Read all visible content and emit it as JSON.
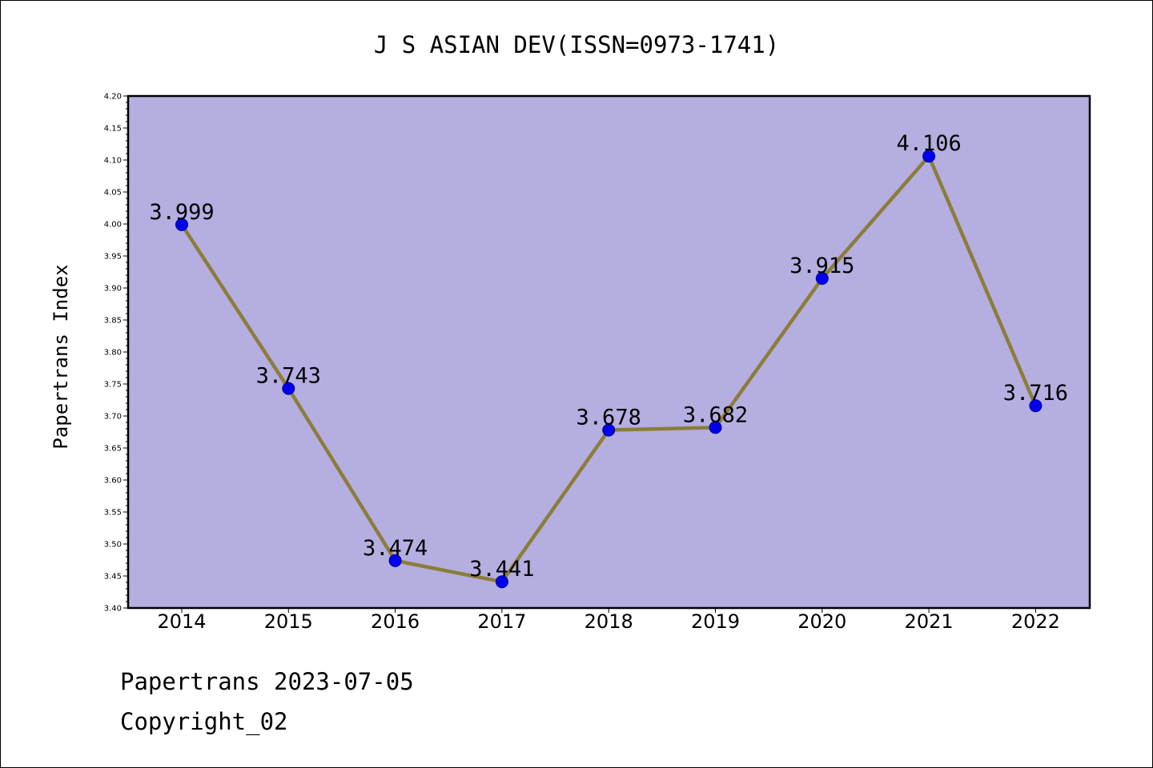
{
  "chart_data": {
    "type": "line",
    "title": "J S ASIAN DEV(ISSN=0973-1741)",
    "xlabel": "",
    "ylabel": "Papertrans Index",
    "categories": [
      "2014",
      "2015",
      "2016",
      "2017",
      "2018",
      "2019",
      "2020",
      "2021",
      "2022"
    ],
    "series": [
      {
        "values": [
          3.999,
          3.743,
          3.474,
          3.441,
          3.678,
          3.682,
          3.915,
          4.106,
          3.716
        ],
        "data_labels": [
          "3.999",
          "3.743",
          "3.474",
          "3.441",
          "3.678",
          "3.682",
          "3.915",
          "4.106",
          "3.716"
        ]
      }
    ],
    "ylim": [
      3.4,
      4.2
    ],
    "yticks": [
      "3.40",
      "3.45",
      "3.50",
      "3.55",
      "3.60",
      "3.65",
      "3.70",
      "3.75",
      "3.80",
      "3.85",
      "3.90",
      "3.95",
      "4.00",
      "4.05",
      "4.10",
      "4.15",
      "4.20"
    ],
    "grid": false,
    "legend": "none",
    "colors": {
      "plot_background": "#b5aee0",
      "line": "#8b7d3a",
      "marker": "#0000ee",
      "marker_edge": "#00008b"
    }
  },
  "footer": {
    "line1": "Papertrans 2023-07-05",
    "line2": "Copyright_02"
  }
}
